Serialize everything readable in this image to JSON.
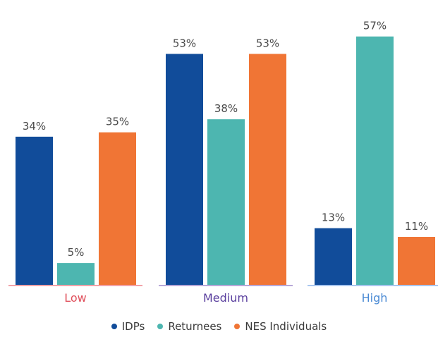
{
  "chart_data": {
    "type": "bar",
    "categories": [
      "Low",
      "Medium",
      "High"
    ],
    "series": [
      {
        "name": "IDPs",
        "values": [
          34,
          53,
          13
        ],
        "color": "#114c9a"
      },
      {
        "name": "Returnees",
        "values": [
          5,
          38,
          57
        ],
        "color": "#4db6b0"
      },
      {
        "name": "NES Individuals",
        "values": [
          35,
          53,
          11
        ],
        "color": "#f07535"
      }
    ],
    "value_suffix": "%",
    "ylim": [
      0,
      60
    ],
    "category_label_colors": [
      "#e0505c",
      "#5a3f9e",
      "#4a8ad4"
    ],
    "category_underline_colors": [
      "#f2a2a8",
      "#b7a8d8",
      "#a9c6ef"
    ],
    "legend_position": "bottom",
    "grid": false
  }
}
